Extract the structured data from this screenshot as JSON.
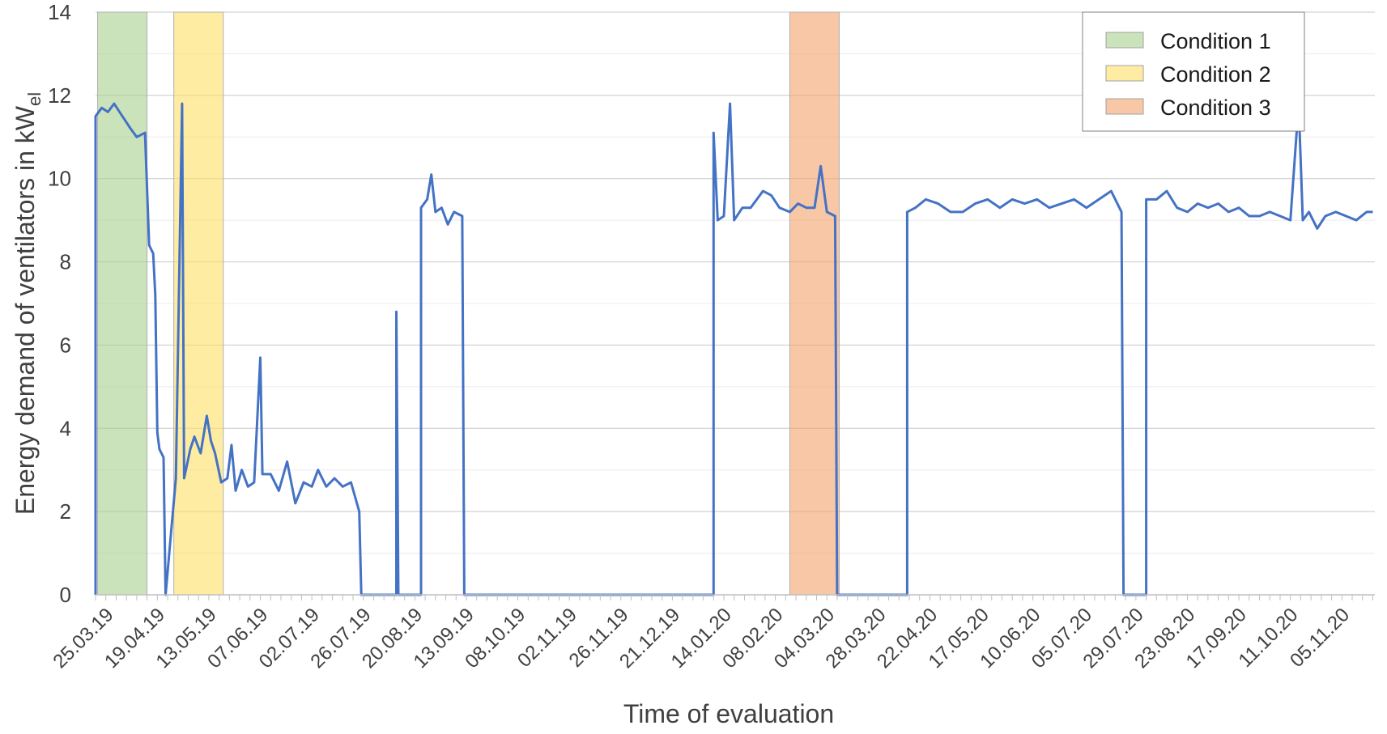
{
  "chart_data": {
    "type": "line",
    "xlabel": "Time of evaluation",
    "ylabel": "Energy demand of ventilators in kW",
    "ylabel_subscript": "el",
    "ylim": [
      0,
      14
    ],
    "y_ticks": [
      0,
      2,
      4,
      6,
      8,
      10,
      12,
      14
    ],
    "x_start_date": "2019-03-19",
    "x_end_date": "2020-11-29",
    "x_tick_labels": [
      "25.03.19",
      "19.04.19",
      "13.05.19",
      "07.06.19",
      "02.07.19",
      "26.07.19",
      "20.08.19",
      "13.09.19",
      "08.10.19",
      "02.11.19",
      "26.11.19",
      "21.12.19",
      "14.01.20",
      "08.02.20",
      "04.03.20",
      "28.03.20",
      "22.04.20",
      "17.05.20",
      "10.06.20",
      "05.07.20",
      "29.07.20",
      "23.08.20",
      "17.09.20",
      "11.10.20",
      "05.11.20"
    ],
    "grid": true,
    "legend_position": "top-right",
    "colors": {
      "series": "#4472C4",
      "grid": "#d9d9d9",
      "axis": "#bfbfbf",
      "text": "#404040"
    },
    "conditions": [
      {
        "name": "Condition 1",
        "start": "2019-03-20",
        "end": "2019-04-13",
        "color": "#A9D18E"
      },
      {
        "name": "Condition 2",
        "start": "2019-04-26",
        "end": "2019-05-20",
        "color": "#FFE066"
      },
      {
        "name": "Condition 3",
        "start": "2020-02-19",
        "end": "2020-03-14",
        "color": "#F4A16B"
      }
    ],
    "series": [
      {
        "points": [
          [
            "2019-03-19",
            0
          ],
          [
            "2019-03-19",
            11.5
          ],
          [
            "2019-03-22",
            11.7
          ],
          [
            "2019-03-25",
            11.6
          ],
          [
            "2019-03-28",
            11.8
          ],
          [
            "2019-04-01",
            11.5
          ],
          [
            "2019-04-05",
            11.2
          ],
          [
            "2019-04-08",
            11.0
          ],
          [
            "2019-04-12",
            11.1
          ],
          [
            "2019-04-14",
            8.4
          ],
          [
            "2019-04-16",
            8.2
          ],
          [
            "2019-04-17",
            7.2
          ],
          [
            "2019-04-18",
            3.9
          ],
          [
            "2019-04-19",
            3.5
          ],
          [
            "2019-04-21",
            3.3
          ],
          [
            "2019-04-22",
            0
          ],
          [
            "2019-04-27",
            2.8
          ],
          [
            "2019-04-30",
            11.8
          ],
          [
            "2019-05-01",
            2.8
          ],
          [
            "2019-05-04",
            3.5
          ],
          [
            "2019-05-06",
            3.8
          ],
          [
            "2019-05-09",
            3.4
          ],
          [
            "2019-05-12",
            4.3
          ],
          [
            "2019-05-14",
            3.7
          ],
          [
            "2019-05-16",
            3.4
          ],
          [
            "2019-05-19",
            2.7
          ],
          [
            "2019-05-22",
            2.8
          ],
          [
            "2019-05-24",
            3.6
          ],
          [
            "2019-05-26",
            2.5
          ],
          [
            "2019-05-29",
            3.0
          ],
          [
            "2019-06-01",
            2.6
          ],
          [
            "2019-06-04",
            2.7
          ],
          [
            "2019-06-07",
            5.7
          ],
          [
            "2019-06-08",
            2.9
          ],
          [
            "2019-06-12",
            2.9
          ],
          [
            "2019-06-16",
            2.5
          ],
          [
            "2019-06-20",
            3.2
          ],
          [
            "2019-06-24",
            2.2
          ],
          [
            "2019-06-28",
            2.7
          ],
          [
            "2019-07-02",
            2.6
          ],
          [
            "2019-07-05",
            3.0
          ],
          [
            "2019-07-09",
            2.6
          ],
          [
            "2019-07-13",
            2.8
          ],
          [
            "2019-07-17",
            2.6
          ],
          [
            "2019-07-21",
            2.7
          ],
          [
            "2019-07-25",
            2.0
          ],
          [
            "2019-07-26",
            0
          ],
          [
            "2019-08-12",
            0
          ],
          [
            "2019-08-12",
            6.8
          ],
          [
            "2019-08-13",
            0
          ],
          [
            "2019-08-24",
            0
          ],
          [
            "2019-08-24",
            9.3
          ],
          [
            "2019-08-27",
            9.5
          ],
          [
            "2019-08-29",
            10.1
          ],
          [
            "2019-08-31",
            9.2
          ],
          [
            "2019-09-03",
            9.3
          ],
          [
            "2019-09-06",
            8.9
          ],
          [
            "2019-09-09",
            9.2
          ],
          [
            "2019-09-13",
            9.1
          ],
          [
            "2019-09-14",
            0
          ],
          [
            "2020-01-13",
            0
          ],
          [
            "2020-01-13",
            11.1
          ],
          [
            "2020-01-15",
            9.0
          ],
          [
            "2020-01-18",
            9.1
          ],
          [
            "2020-01-21",
            11.8
          ],
          [
            "2020-01-23",
            9.0
          ],
          [
            "2020-01-27",
            9.3
          ],
          [
            "2020-01-31",
            9.3
          ],
          [
            "2020-02-03",
            9.5
          ],
          [
            "2020-02-06",
            9.7
          ],
          [
            "2020-02-10",
            9.6
          ],
          [
            "2020-02-14",
            9.3
          ],
          [
            "2020-02-19",
            9.2
          ],
          [
            "2020-02-23",
            9.4
          ],
          [
            "2020-02-27",
            9.3
          ],
          [
            "2020-03-02",
            9.3
          ],
          [
            "2020-03-05",
            10.3
          ],
          [
            "2020-03-08",
            9.2
          ],
          [
            "2020-03-12",
            9.1
          ],
          [
            "2020-03-13",
            0
          ],
          [
            "2020-04-16",
            0
          ],
          [
            "2020-04-16",
            9.2
          ],
          [
            "2020-04-20",
            9.3
          ],
          [
            "2020-04-25",
            9.5
          ],
          [
            "2020-05-01",
            9.4
          ],
          [
            "2020-05-07",
            9.2
          ],
          [
            "2020-05-13",
            9.2
          ],
          [
            "2020-05-19",
            9.4
          ],
          [
            "2020-05-25",
            9.5
          ],
          [
            "2020-05-31",
            9.3
          ],
          [
            "2020-06-06",
            9.5
          ],
          [
            "2020-06-12",
            9.4
          ],
          [
            "2020-06-18",
            9.5
          ],
          [
            "2020-06-24",
            9.3
          ],
          [
            "2020-06-30",
            9.4
          ],
          [
            "2020-07-06",
            9.5
          ],
          [
            "2020-07-12",
            9.3
          ],
          [
            "2020-07-18",
            9.5
          ],
          [
            "2020-07-24",
            9.7
          ],
          [
            "2020-07-29",
            9.2
          ],
          [
            "2020-07-30",
            0
          ],
          [
            "2020-08-10",
            0
          ],
          [
            "2020-08-10",
            9.5
          ],
          [
            "2020-08-15",
            9.5
          ],
          [
            "2020-08-20",
            9.7
          ],
          [
            "2020-08-25",
            9.3
          ],
          [
            "2020-08-30",
            9.2
          ],
          [
            "2020-09-04",
            9.4
          ],
          [
            "2020-09-09",
            9.3
          ],
          [
            "2020-09-14",
            9.4
          ],
          [
            "2020-09-19",
            9.2
          ],
          [
            "2020-09-24",
            9.3
          ],
          [
            "2020-09-29",
            9.1
          ],
          [
            "2020-10-04",
            9.1
          ],
          [
            "2020-10-09",
            9.2
          ],
          [
            "2020-10-14",
            9.1
          ],
          [
            "2020-10-19",
            9.0
          ],
          [
            "2020-10-23",
            11.8
          ],
          [
            "2020-10-25",
            9.0
          ],
          [
            "2020-10-28",
            9.2
          ],
          [
            "2020-11-01",
            8.8
          ],
          [
            "2020-11-05",
            9.1
          ],
          [
            "2020-11-10",
            9.2
          ],
          [
            "2020-11-15",
            9.1
          ],
          [
            "2020-11-20",
            9.0
          ],
          [
            "2020-11-25",
            9.2
          ],
          [
            "2020-11-28",
            9.2
          ]
        ]
      }
    ]
  }
}
